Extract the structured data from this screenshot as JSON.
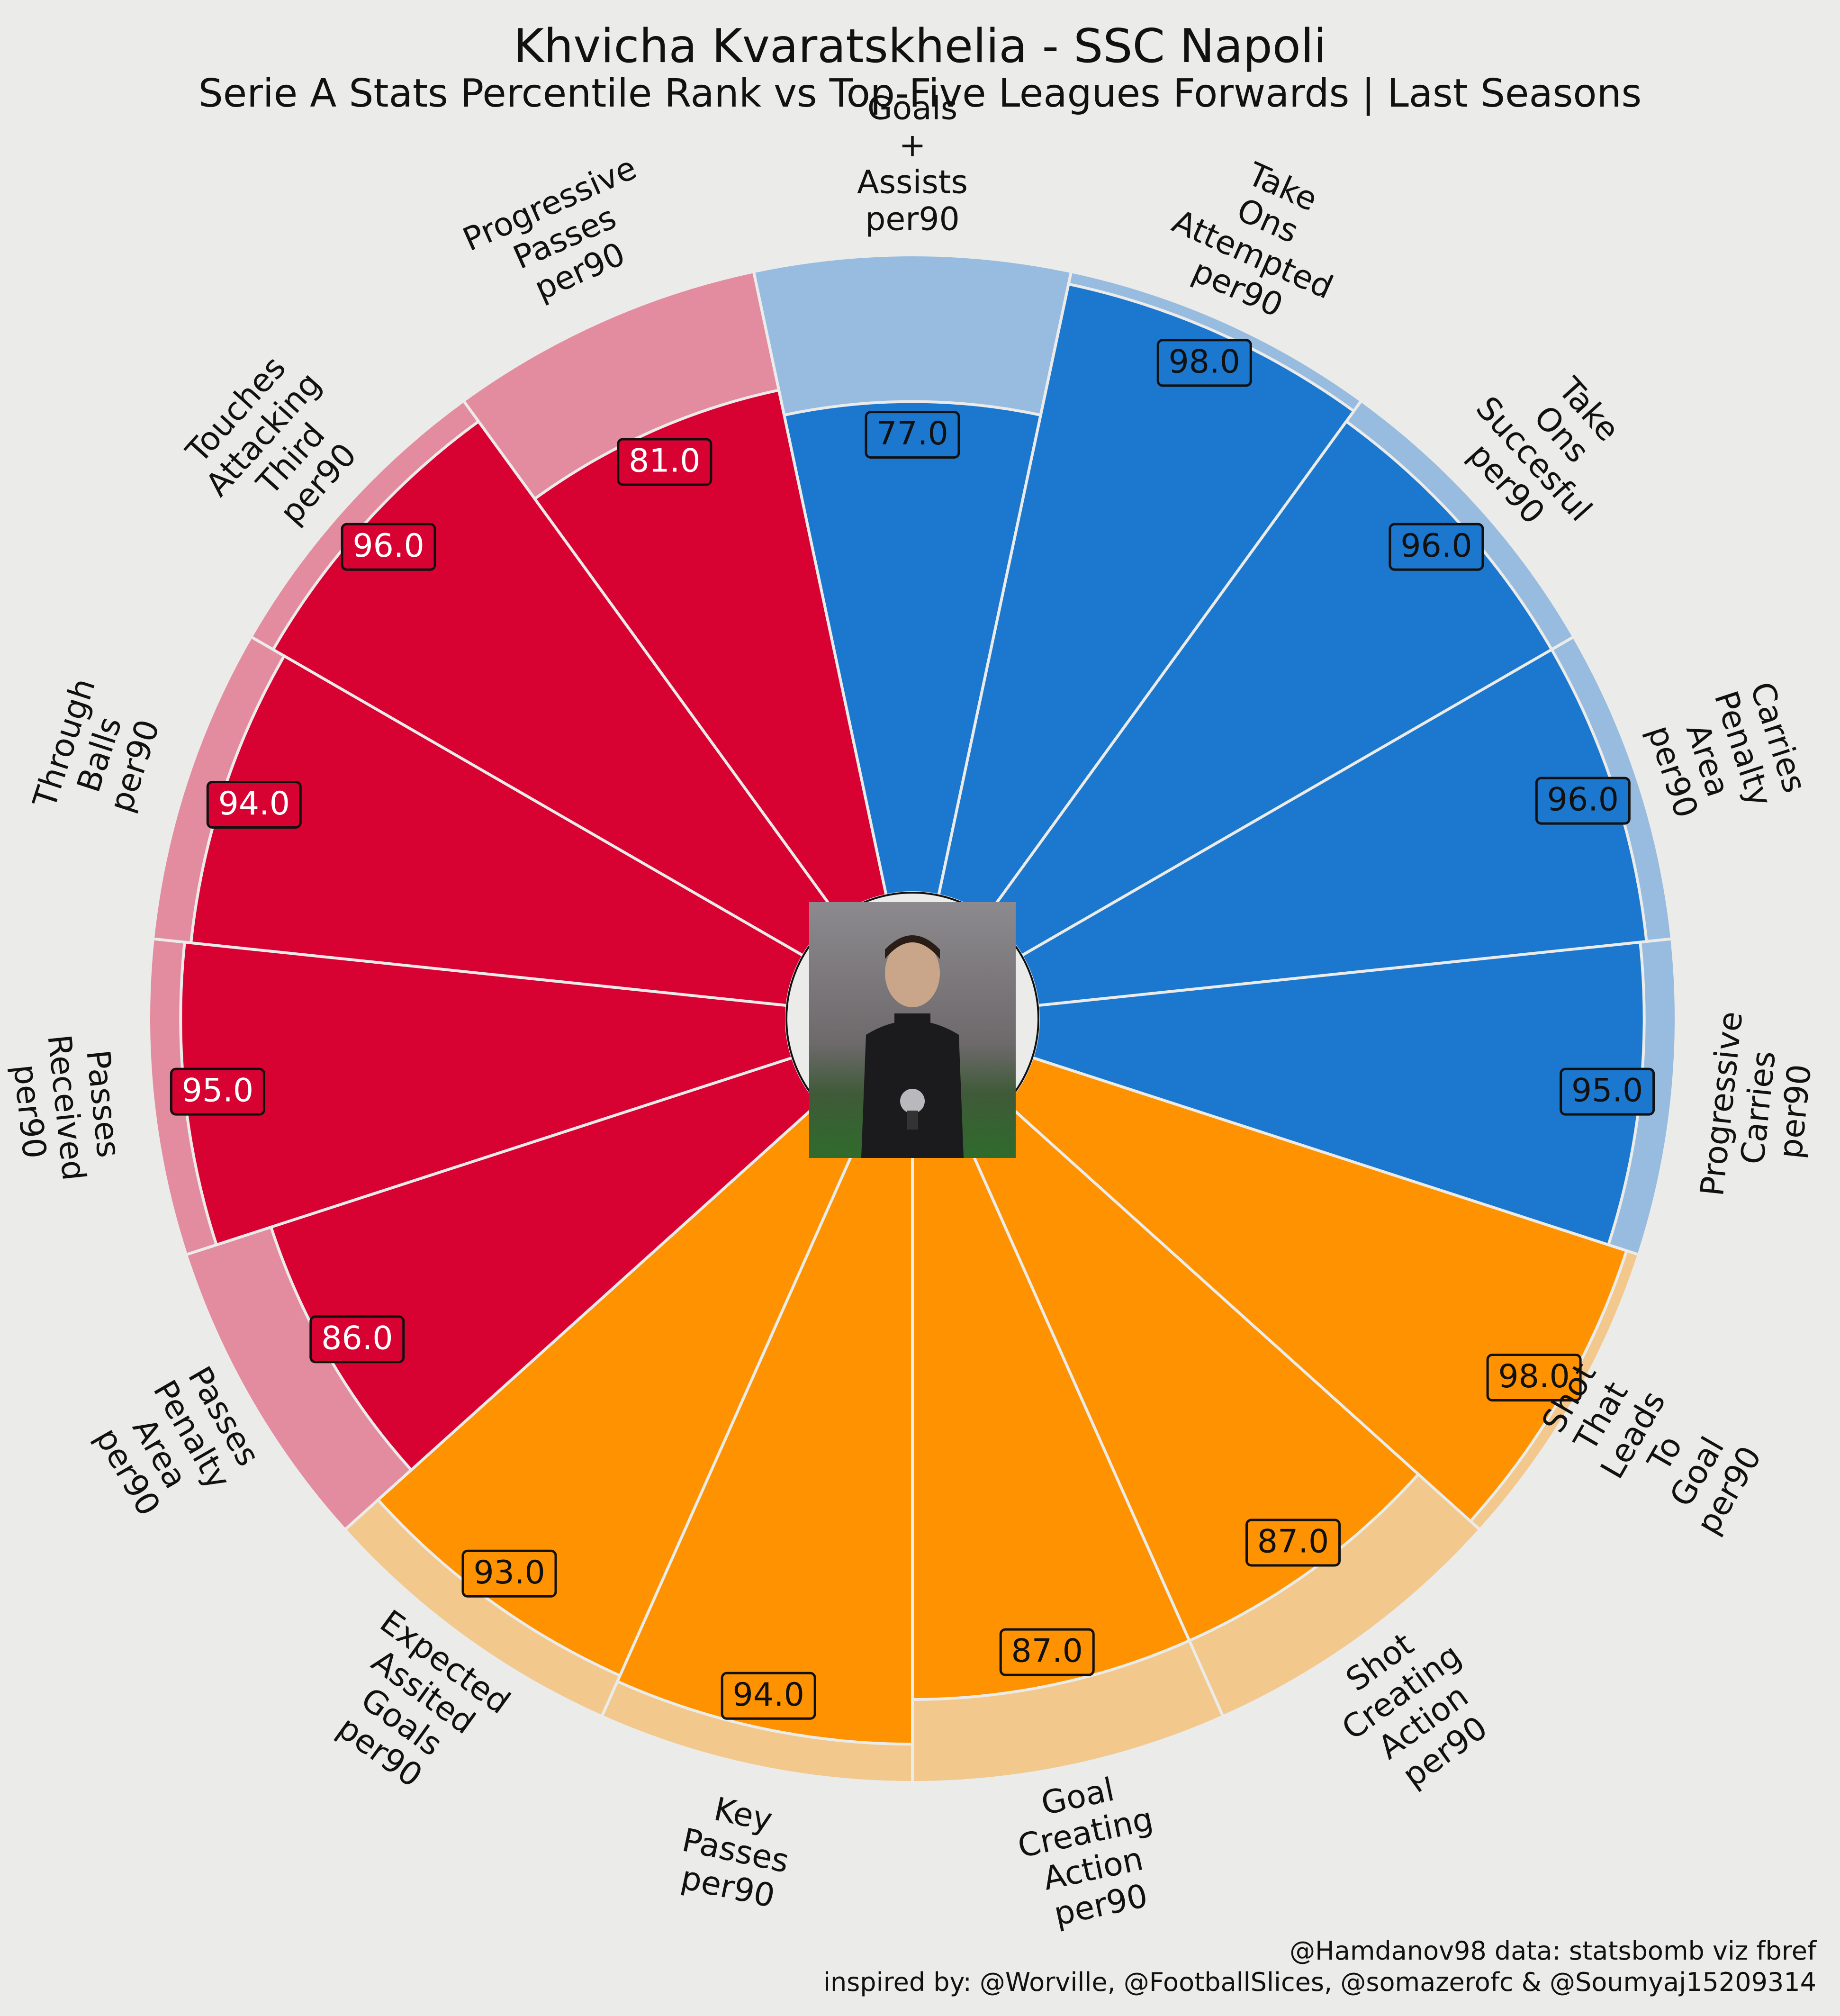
{
  "header": {
    "title": "Khvicha Kvaratskhelia - SSC Napoli",
    "subtitle": "Serie A Stats Percentile Rank vs Top-Five Leagues Forwards | Last Seasons"
  },
  "credits": {
    "line1": "@Hamdanov98 data: statsbomb viz fbref",
    "line2": "inspired by: @Worville, @FootballSlices, @somazerofc & @Soumyaj15209314"
  },
  "colors": {
    "background": "#ebebe9",
    "attacking": "#1c78cf",
    "attacking_light": "#98bcdf",
    "chance_creation": "#fe9200",
    "chance_creation_light": "#f2c88c",
    "possession": "#d70232",
    "possession_light": "#e38c9f"
  },
  "chart_data": {
    "type": "pizza",
    "ylim": [
      0,
      100
    ],
    "categories": [
      "Goals\n+\nAssists\nper90",
      "Take\nOns\nAttempted\nper90",
      "Take\nOns\nSuccesful\nper90",
      "Carries\nPenalty\nArea\nper90",
      "Progressive\nCarries\nper90",
      "Shot\nThat\nLeads\nTo\nGoal\nper90",
      "Shot\nCreating\nAction\nper90",
      "Goal\nCreating\nAction\nper90",
      "Key\nPasses\nper90",
      "Expected\nAssited\nGoals\nper90",
      "Passes\nPenalty\nArea\nper90",
      "Passes\nReceived\nper90",
      "Through\nBalls\nper90",
      "Touches\nAttacking\nThird\nper90",
      "Progressive\nPasses\nper90"
    ],
    "values": [
      77,
      98,
      96,
      96,
      95,
      98,
      87,
      87,
      94,
      93,
      86,
      95,
      94,
      96,
      81
    ],
    "value_labels": [
      "77.0",
      "98.0",
      "96.0",
      "96.0",
      "95.0",
      "98.0",
      "87.0",
      "87.0",
      "94.0",
      "93.0",
      "86.0",
      "95.0",
      "94.0",
      "96.0",
      "81.0"
    ],
    "groups": [
      "attacking",
      "attacking",
      "attacking",
      "attacking",
      "attacking",
      "chance_creation",
      "chance_creation",
      "chance_creation",
      "chance_creation",
      "chance_creation",
      "possession",
      "possession",
      "possession",
      "possession",
      "possession"
    ]
  }
}
